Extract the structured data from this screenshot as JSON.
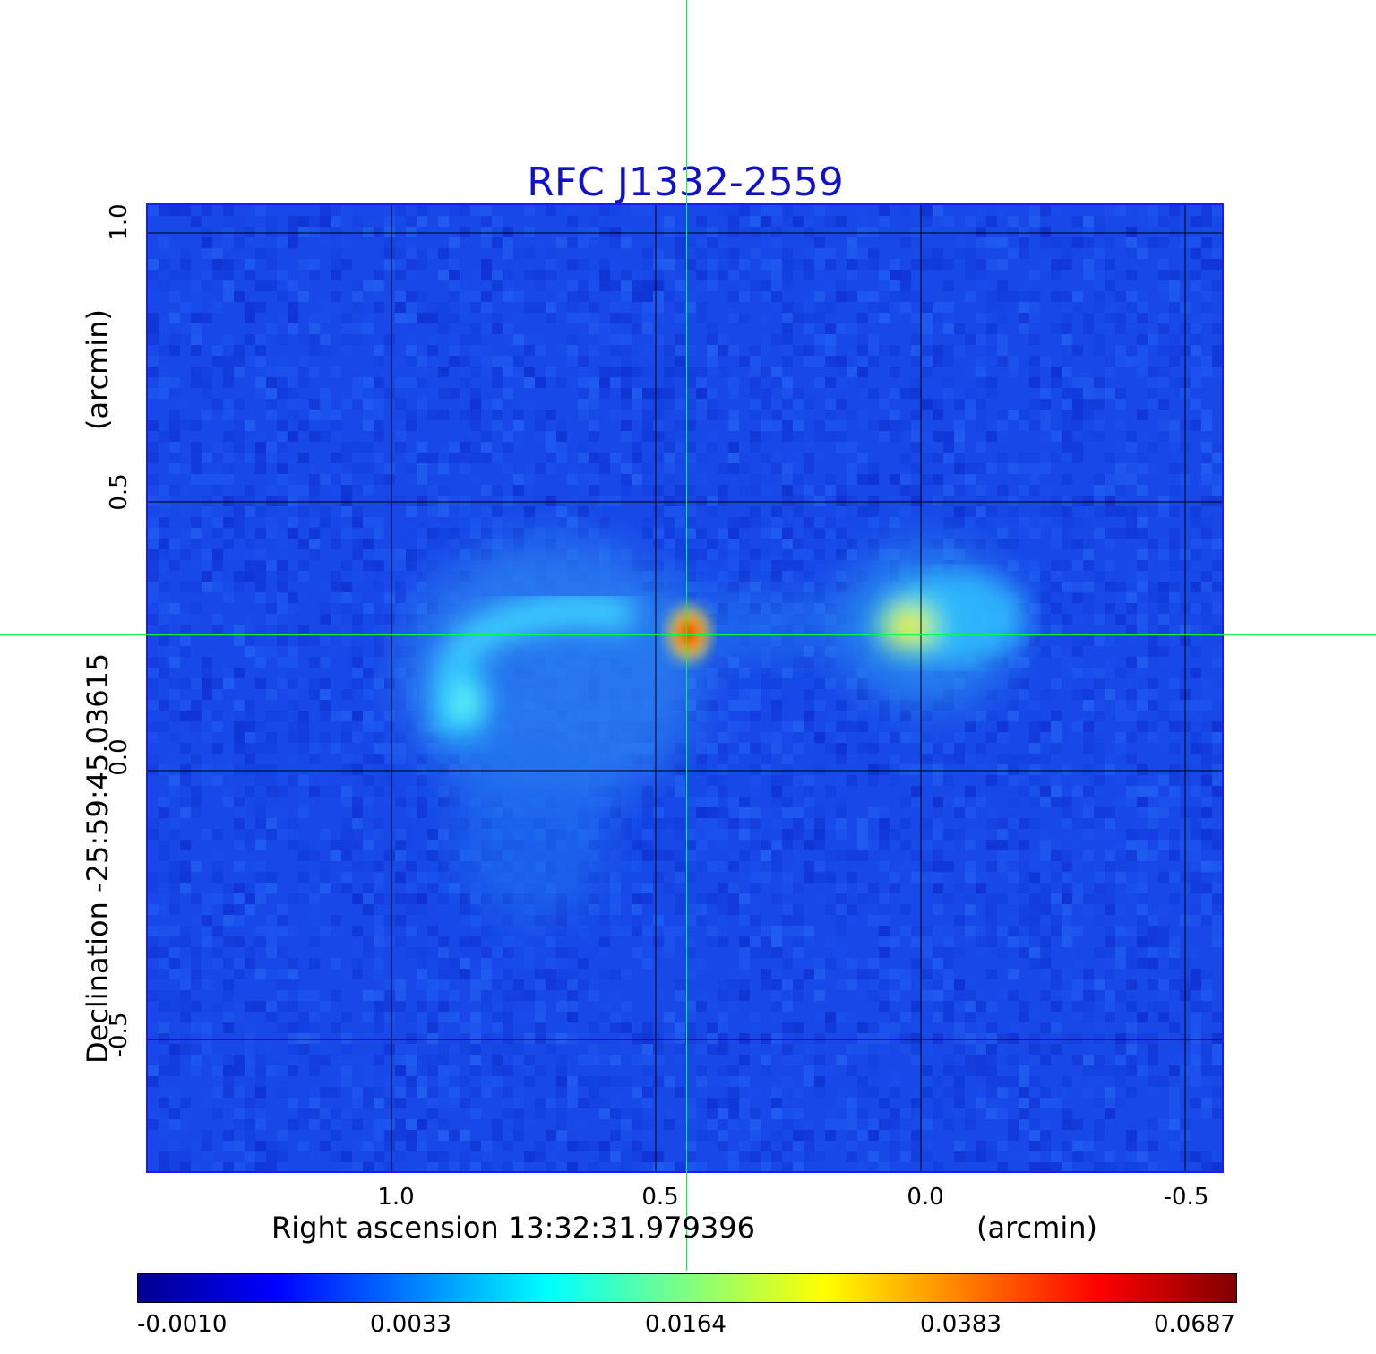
{
  "title": "RFC J1332-2559",
  "x_axis": {
    "label": "Right ascension  13:32:31.979396",
    "unit": "(arcmin)",
    "ticks": [
      "1.0",
      "0.5",
      "0.0",
      "-0.5"
    ]
  },
  "y_axis": {
    "label": "Declination  -25:59:45.03615",
    "unit": "(arcmin)",
    "ticks": [
      "1.0",
      "0.5",
      "0.0",
      "-0.5"
    ]
  },
  "colorbar": {
    "ticks": [
      "-0.0010",
      "0.0033",
      "0.0164",
      "0.0383",
      "0.0687"
    ],
    "colormap": "jet"
  },
  "colors": {
    "title": "#1111cc",
    "background_map": "#1848e8",
    "crosshair": "#00ff40",
    "grid": "#000000"
  },
  "image": {
    "description_kind": "radio continuum map",
    "crosshair": true,
    "grid": true
  }
}
